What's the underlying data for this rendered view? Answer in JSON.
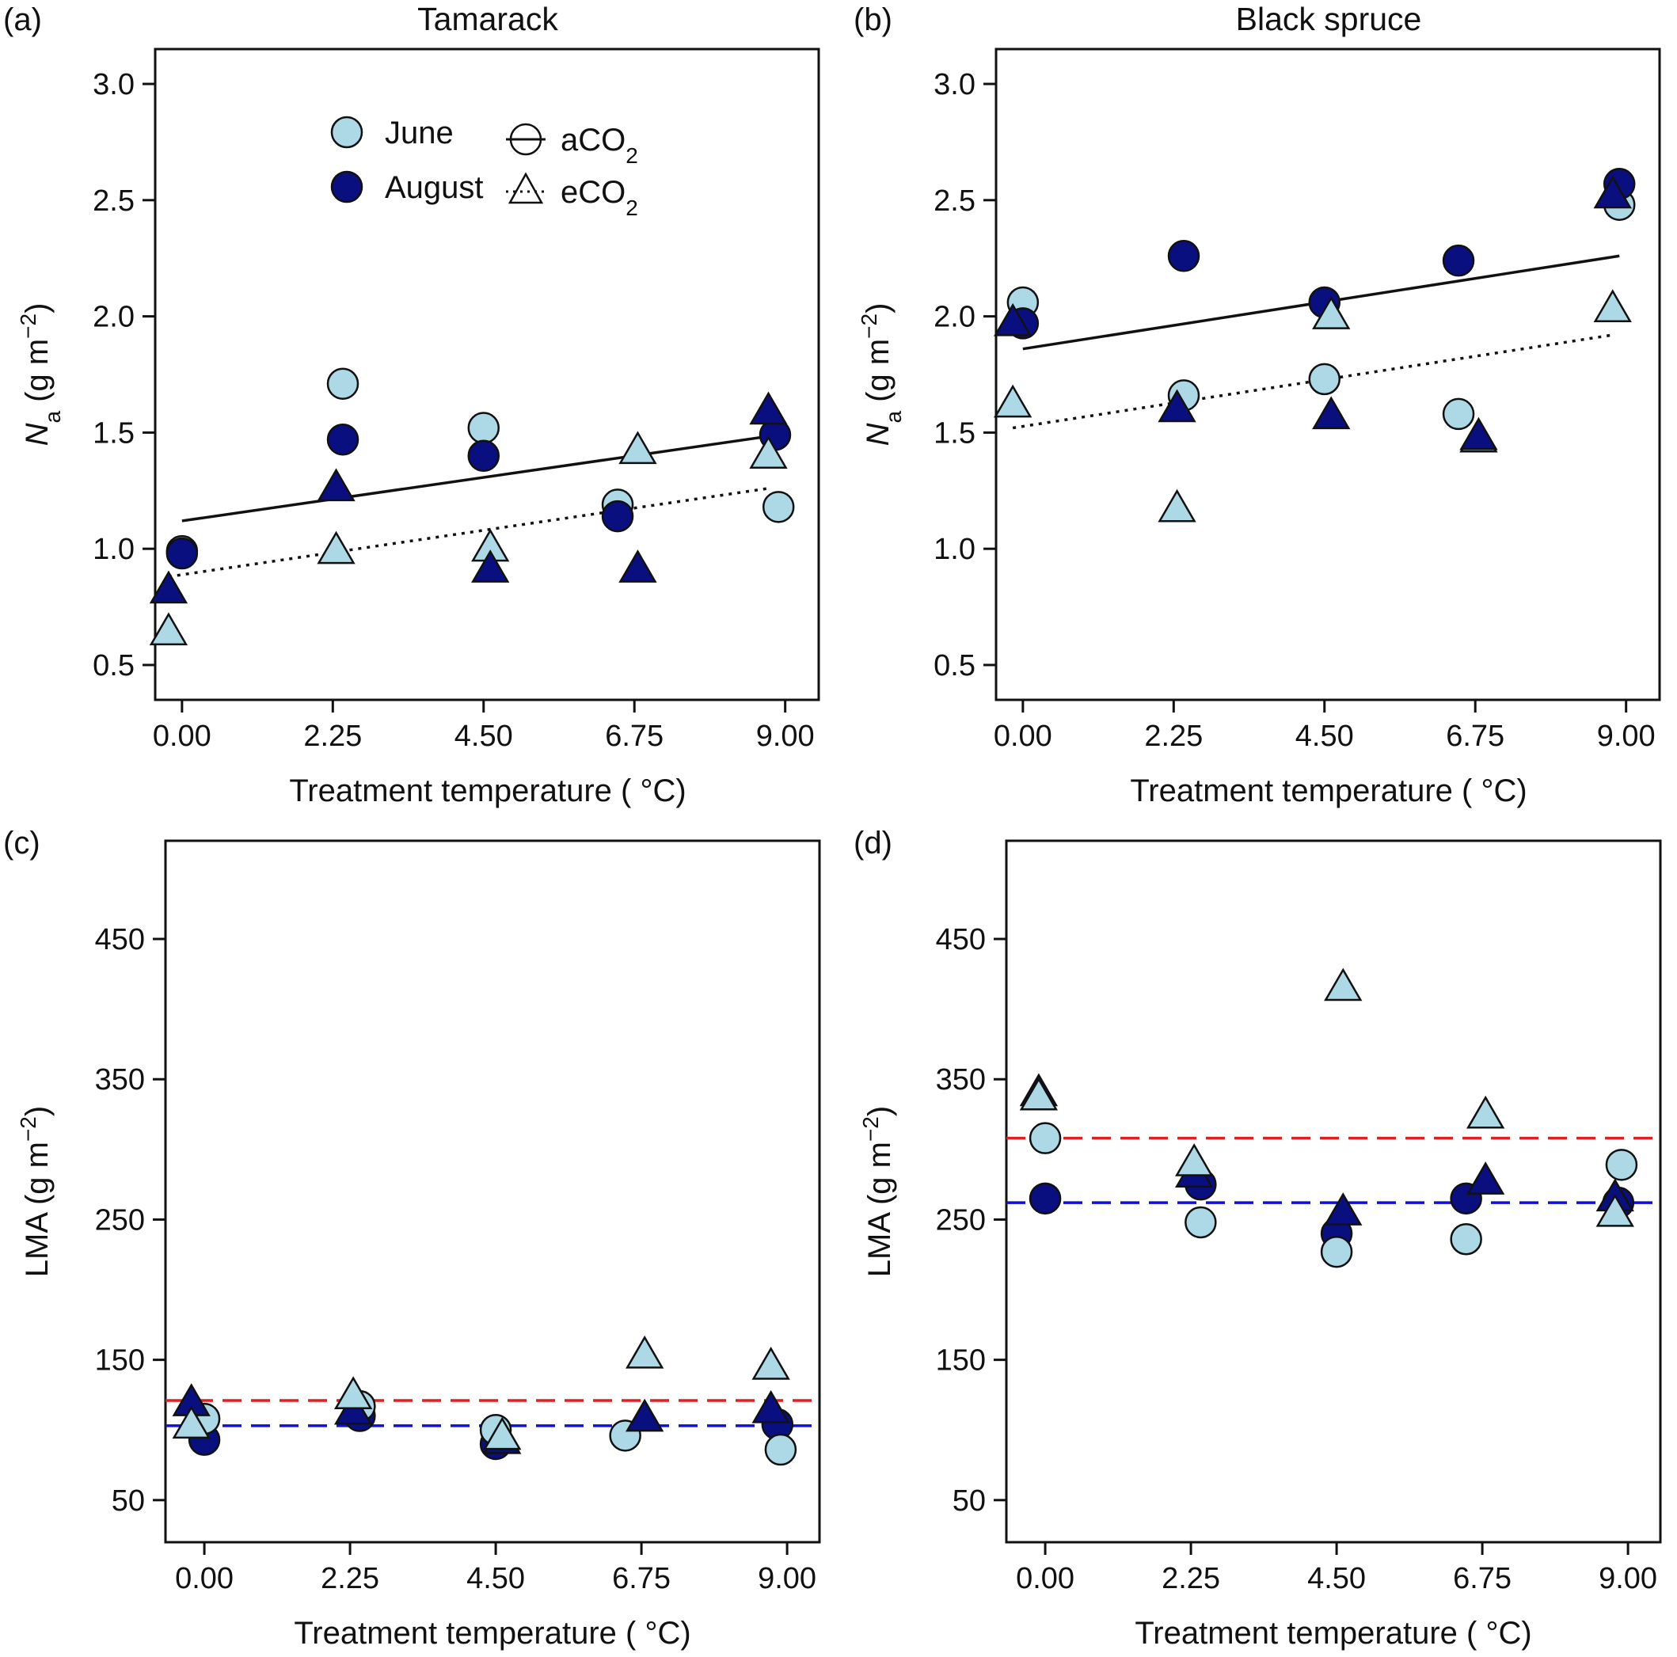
{
  "figure": {
    "colors": {
      "june": "#add8e6",
      "august": "#0a0f7f",
      "outline": "#111111",
      "ref_red": "#e02020",
      "ref_blue": "#1010d0"
    },
    "legend": {
      "june": "June",
      "august": "August",
      "aco2_prefix": "aCO",
      "eco2_prefix": "eCO",
      "co2_sub": "2"
    }
  },
  "chart_data": [
    {
      "id": "panel-a",
      "panel_label": "(a)",
      "type": "scatter",
      "title": "Tamarack",
      "xlabel": "Treatment temperature ( °C)",
      "ylabel_html": "N",
      "ylabel_sub": "a",
      "ylabel_rest": " (g m",
      "ylabel_sup": "−2",
      "ylabel_end": ")",
      "ylim": [
        0.35,
        3.15
      ],
      "xlim": [
        -0.4,
        9.5
      ],
      "yticks": [
        0.5,
        1.0,
        1.5,
        2.0,
        2.5,
        3.0
      ],
      "yticklabels": [
        "0.5",
        "1.0",
        "1.5",
        "2.0",
        "2.5",
        "3.0"
      ],
      "xticks": [
        0,
        2.25,
        4.5,
        6.75,
        9
      ],
      "xticklabels": [
        "0.00",
        "2.25",
        "4.50",
        "6.75",
        "9.00"
      ],
      "show_legend": true,
      "points": [
        {
          "month": "June",
          "co2": "aCO2",
          "x": 0.0,
          "y": 0.99
        },
        {
          "month": "June",
          "co2": "aCO2",
          "x": 2.4,
          "y": 1.71
        },
        {
          "month": "June",
          "co2": "aCO2",
          "x": 4.5,
          "y": 1.52
        },
        {
          "month": "June",
          "co2": "aCO2",
          "x": 6.5,
          "y": 1.19
        },
        {
          "month": "June",
          "co2": "aCO2",
          "x": 8.9,
          "y": 1.18
        },
        {
          "month": "August",
          "co2": "aCO2",
          "x": 0.0,
          "y": 0.98
        },
        {
          "month": "August",
          "co2": "aCO2",
          "x": 2.4,
          "y": 1.47
        },
        {
          "month": "August",
          "co2": "aCO2",
          "x": 4.5,
          "y": 1.4
        },
        {
          "month": "August",
          "co2": "aCO2",
          "x": 6.5,
          "y": 1.14
        },
        {
          "month": "August",
          "co2": "aCO2",
          "x": 8.85,
          "y": 1.49
        },
        {
          "month": "June",
          "co2": "eCO2",
          "x": -0.2,
          "y": 0.64
        },
        {
          "month": "June",
          "co2": "eCO2",
          "x": 2.3,
          "y": 0.99
        },
        {
          "month": "June",
          "co2": "eCO2",
          "x": 4.6,
          "y": 1.0
        },
        {
          "month": "June",
          "co2": "eCO2",
          "x": 6.8,
          "y": 1.42
        },
        {
          "month": "June",
          "co2": "eCO2",
          "x": 8.75,
          "y": 1.4
        },
        {
          "month": "August",
          "co2": "eCO2",
          "x": -0.2,
          "y": 0.82
        },
        {
          "month": "August",
          "co2": "eCO2",
          "x": 2.3,
          "y": 1.26
        },
        {
          "month": "August",
          "co2": "eCO2",
          "x": 4.6,
          "y": 0.91
        },
        {
          "month": "August",
          "co2": "eCO2",
          "x": 6.8,
          "y": 0.91
        },
        {
          "month": "August",
          "co2": "eCO2",
          "x": 8.75,
          "y": 1.59
        }
      ],
      "lines": [
        {
          "co2": "aCO2",
          "style": "solid",
          "x": [
            0.0,
            8.9
          ],
          "y": [
            1.12,
            1.49
          ]
        },
        {
          "co2": "eCO2",
          "style": "dotted",
          "x": [
            -0.2,
            8.75
          ],
          "y": [
            0.88,
            1.26
          ]
        }
      ]
    },
    {
      "id": "panel-b",
      "panel_label": "(b)",
      "type": "scatter",
      "title": "Black spruce",
      "xlabel": "Treatment temperature ( °C)",
      "ylabel_html": "N",
      "ylabel_sub": "a",
      "ylabel_rest": " (g m",
      "ylabel_sup": "−2",
      "ylabel_end": ")",
      "ylim": [
        0.35,
        3.15
      ],
      "xlim": [
        -0.4,
        9.5
      ],
      "yticks": [
        0.5,
        1.0,
        1.5,
        2.0,
        2.5,
        3.0
      ],
      "yticklabels": [
        "0.5",
        "1.0",
        "1.5",
        "2.0",
        "2.5",
        "3.0"
      ],
      "xticks": [
        0,
        2.25,
        4.5,
        6.75,
        9
      ],
      "xticklabels": [
        "0.00",
        "2.25",
        "4.50",
        "6.75",
        "9.00"
      ],
      "show_legend": false,
      "points": [
        {
          "month": "June",
          "co2": "aCO2",
          "x": 0.0,
          "y": 2.06
        },
        {
          "month": "June",
          "co2": "aCO2",
          "x": 2.4,
          "y": 1.66
        },
        {
          "month": "June",
          "co2": "aCO2",
          "x": 4.5,
          "y": 1.73
        },
        {
          "month": "June",
          "co2": "aCO2",
          "x": 6.5,
          "y": 1.58
        },
        {
          "month": "June",
          "co2": "aCO2",
          "x": 8.9,
          "y": 2.48
        },
        {
          "month": "August",
          "co2": "aCO2",
          "x": 0.0,
          "y": 1.97
        },
        {
          "month": "August",
          "co2": "aCO2",
          "x": 2.4,
          "y": 2.26
        },
        {
          "month": "August",
          "co2": "aCO2",
          "x": 4.5,
          "y": 2.06
        },
        {
          "month": "August",
          "co2": "aCO2",
          "x": 6.5,
          "y": 2.24
        },
        {
          "month": "August",
          "co2": "aCO2",
          "x": 8.9,
          "y": 2.57
        },
        {
          "month": "June",
          "co2": "eCO2",
          "x": -0.15,
          "y": 1.62
        },
        {
          "month": "June",
          "co2": "eCO2",
          "x": 2.3,
          "y": 1.17
        },
        {
          "month": "June",
          "co2": "eCO2",
          "x": 4.6,
          "y": 2.0
        },
        {
          "month": "June",
          "co2": "eCO2",
          "x": 6.8,
          "y": 1.47
        },
        {
          "month": "June",
          "co2": "eCO2",
          "x": 8.8,
          "y": 2.03
        },
        {
          "month": "August",
          "co2": "eCO2",
          "x": -0.15,
          "y": 1.97
        },
        {
          "month": "August",
          "co2": "eCO2",
          "x": 2.3,
          "y": 1.6
        },
        {
          "month": "August",
          "co2": "eCO2",
          "x": 4.6,
          "y": 1.57
        },
        {
          "month": "August",
          "co2": "eCO2",
          "x": 6.8,
          "y": 1.48
        },
        {
          "month": "August",
          "co2": "eCO2",
          "x": 8.8,
          "y": 2.52
        }
      ],
      "lines": [
        {
          "co2": "aCO2",
          "style": "solid",
          "x": [
            0.0,
            8.9
          ],
          "y": [
            1.86,
            2.26
          ]
        },
        {
          "co2": "eCO2",
          "style": "dotted",
          "x": [
            -0.15,
            8.8
          ],
          "y": [
            1.52,
            1.92
          ]
        }
      ]
    },
    {
      "id": "panel-c",
      "panel_label": "(c)",
      "type": "scatter",
      "title": "",
      "xlabel": "Treatment temperature ( °C)",
      "ylabel_html": "LMA",
      "ylabel_sub": "",
      "ylabel_rest": " (g m",
      "ylabel_sup": "−2",
      "ylabel_end": ")",
      "ylim": [
        20,
        520
      ],
      "xlim": [
        -0.6,
        9.5
      ],
      "yticks": [
        50,
        150,
        250,
        350,
        450
      ],
      "yticklabels": [
        "50",
        "150",
        "250",
        "350",
        "450"
      ],
      "xticks": [
        0,
        2.25,
        4.5,
        6.75,
        9
      ],
      "xticklabels": [
        "0.00",
        "2.25",
        "4.50",
        "6.75",
        "9.00"
      ],
      "show_legend": false,
      "points": [
        {
          "month": "August",
          "co2": "aCO2",
          "x": 0.0,
          "y": 93
        },
        {
          "month": "August",
          "co2": "aCO2",
          "x": 2.4,
          "y": 110
        },
        {
          "month": "August",
          "co2": "aCO2",
          "x": 4.5,
          "y": 90
        },
        {
          "month": "August",
          "co2": "aCO2",
          "x": 8.85,
          "y": 104
        },
        {
          "month": "June",
          "co2": "aCO2",
          "x": 0.0,
          "y": 108
        },
        {
          "month": "June",
          "co2": "aCO2",
          "x": 2.4,
          "y": 117
        },
        {
          "month": "June",
          "co2": "aCO2",
          "x": 4.5,
          "y": 100
        },
        {
          "month": "June",
          "co2": "aCO2",
          "x": 6.5,
          "y": 96
        },
        {
          "month": "June",
          "co2": "aCO2",
          "x": 8.9,
          "y": 86
        },
        {
          "month": "August",
          "co2": "eCO2",
          "x": -0.2,
          "y": 119
        },
        {
          "month": "August",
          "co2": "eCO2",
          "x": 2.3,
          "y": 113
        },
        {
          "month": "August",
          "co2": "eCO2",
          "x": 4.6,
          "y": 92
        },
        {
          "month": "August",
          "co2": "eCO2",
          "x": 6.8,
          "y": 108
        },
        {
          "month": "August",
          "co2": "eCO2",
          "x": 8.75,
          "y": 114
        },
        {
          "month": "June",
          "co2": "eCO2",
          "x": -0.2,
          "y": 103
        },
        {
          "month": "June",
          "co2": "eCO2",
          "x": 2.3,
          "y": 124
        },
        {
          "month": "June",
          "co2": "eCO2",
          "x": 4.6,
          "y": 95
        },
        {
          "month": "June",
          "co2": "eCO2",
          "x": 6.8,
          "y": 153
        },
        {
          "month": "June",
          "co2": "eCO2",
          "x": 8.75,
          "y": 145
        }
      ],
      "hlines": [
        {
          "color": "ref_red",
          "y": 121
        },
        {
          "color": "ref_blue",
          "y": 103
        }
      ]
    },
    {
      "id": "panel-d",
      "panel_label": "(d)",
      "type": "scatter",
      "title": "",
      "xlabel": "Treatment temperature ( °C)",
      "ylabel_html": "LMA",
      "ylabel_sub": "",
      "ylabel_rest": " (g m",
      "ylabel_sup": "−2",
      "ylabel_end": ")",
      "ylim": [
        20,
        520
      ],
      "xlim": [
        -0.6,
        9.5
      ],
      "yticks": [
        50,
        150,
        250,
        350,
        450
      ],
      "yticklabels": [
        "50",
        "150",
        "250",
        "350",
        "450"
      ],
      "xticks": [
        0,
        2.25,
        4.5,
        6.75,
        9
      ],
      "xticklabels": [
        "0.00",
        "2.25",
        "4.50",
        "6.75",
        "9.00"
      ],
      "show_legend": false,
      "points": [
        {
          "month": "August",
          "co2": "aCO2",
          "x": 0.0,
          "y": 265
        },
        {
          "month": "August",
          "co2": "aCO2",
          "x": 2.4,
          "y": 275
        },
        {
          "month": "August",
          "co2": "aCO2",
          "x": 4.5,
          "y": 240
        },
        {
          "month": "August",
          "co2": "aCO2",
          "x": 6.5,
          "y": 265
        },
        {
          "month": "August",
          "co2": "aCO2",
          "x": 8.85,
          "y": 262
        },
        {
          "month": "June",
          "co2": "aCO2",
          "x": 0.0,
          "y": 308
        },
        {
          "month": "June",
          "co2": "aCO2",
          "x": 2.4,
          "y": 248
        },
        {
          "month": "June",
          "co2": "aCO2",
          "x": 4.5,
          "y": 227
        },
        {
          "month": "June",
          "co2": "aCO2",
          "x": 6.5,
          "y": 236
        },
        {
          "month": "June",
          "co2": "aCO2",
          "x": 8.9,
          "y": 289
        },
        {
          "month": "August",
          "co2": "eCO2",
          "x": -0.1,
          "y": 340
        },
        {
          "month": "August",
          "co2": "eCO2",
          "x": 2.3,
          "y": 282
        },
        {
          "month": "August",
          "co2": "eCO2",
          "x": 4.6,
          "y": 255
        },
        {
          "month": "August",
          "co2": "eCO2",
          "x": 6.8,
          "y": 277
        },
        {
          "month": "August",
          "co2": "eCO2",
          "x": 8.8,
          "y": 265
        },
        {
          "month": "June",
          "co2": "eCO2",
          "x": -0.1,
          "y": 337
        },
        {
          "month": "June",
          "co2": "eCO2",
          "x": 2.3,
          "y": 290
        },
        {
          "month": "June",
          "co2": "eCO2",
          "x": 4.6,
          "y": 415
        },
        {
          "month": "June",
          "co2": "eCO2",
          "x": 6.8,
          "y": 324
        },
        {
          "month": "June",
          "co2": "eCO2",
          "x": 8.8,
          "y": 254
        }
      ],
      "hlines": [
        {
          "color": "ref_red",
          "y": 308
        },
        {
          "color": "ref_blue",
          "y": 262
        }
      ]
    }
  ]
}
